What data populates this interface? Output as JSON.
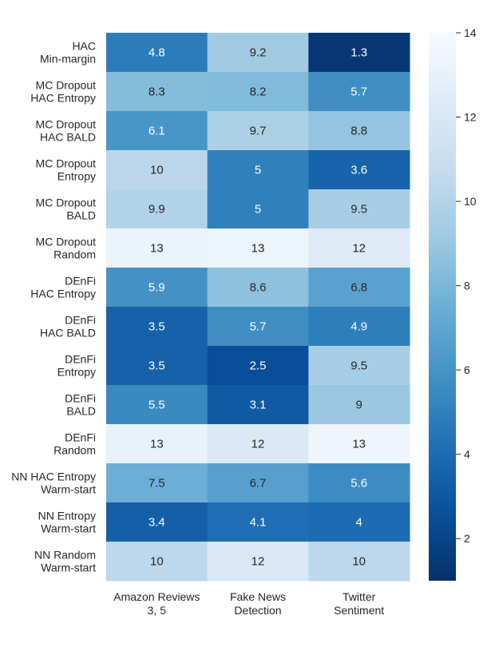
{
  "chart_data": {
    "type": "heatmap",
    "title": "",
    "xlabel": "",
    "ylabel": "",
    "colormap": "Blues_r",
    "color_range": [
      1,
      14
    ],
    "colorbar_ticks": [
      "2",
      "4",
      "6",
      "8",
      "10",
      "12",
      "14"
    ],
    "columns": [
      [
        "Amazon Reviews",
        "3, 5"
      ],
      [
        "Fake News",
        "Detection"
      ],
      [
        "Twitter",
        "Sentiment"
      ]
    ],
    "rows": [
      [
        "HAC",
        "Min-margin"
      ],
      [
        "MC Dropout",
        "HAC Entropy"
      ],
      [
        "MC Dropout",
        "HAC BALD"
      ],
      [
        "MC Dropout",
        "Entropy"
      ],
      [
        "MC Dropout",
        "BALD"
      ],
      [
        "MC Dropout",
        "Random"
      ],
      [
        "DEnFi",
        "HAC Entropy"
      ],
      [
        "DEnFi",
        "HAC BALD"
      ],
      [
        "DEnFi",
        "Entropy"
      ],
      [
        "DEnFi",
        "BALD"
      ],
      [
        "DEnFi",
        "Random"
      ],
      [
        "NN HAC Entropy",
        "Warm-start"
      ],
      [
        "NN Entropy",
        "Warm-start"
      ],
      [
        "NN Random",
        "Warm-start"
      ]
    ],
    "values": [
      [
        4.8,
        9.2,
        1.3
      ],
      [
        8.3,
        8.2,
        5.7
      ],
      [
        6.1,
        9.7,
        8.8
      ],
      [
        10.3,
        5.0,
        3.6
      ],
      [
        9.9,
        5.0,
        9.5
      ],
      [
        13.2,
        13.3,
        12.4
      ],
      [
        5.9,
        8.6,
        6.8
      ],
      [
        3.5,
        5.7,
        4.9
      ],
      [
        3.5,
        2.5,
        9.5
      ],
      [
        5.5,
        3.1,
        9.0
      ],
      [
        13.1,
        12.2,
        13.4
      ],
      [
        7.5,
        6.7,
        5.6
      ],
      [
        3.4,
        4.1,
        4.0
      ],
      [
        10.4,
        12.1,
        10.4
      ]
    ],
    "labels": [
      [
        "4.8",
        "9.2",
        "1.3"
      ],
      [
        "8.3",
        "8.2",
        "5.7"
      ],
      [
        "6.1",
        "9.7",
        "8.8"
      ],
      [
        "10",
        "5",
        "3.6"
      ],
      [
        "9.9",
        "5",
        "9.5"
      ],
      [
        "13",
        "13",
        "12"
      ],
      [
        "5.9",
        "8.6",
        "6.8"
      ],
      [
        "3.5",
        "5.7",
        "4.9"
      ],
      [
        "3.5",
        "2.5",
        "9.5"
      ],
      [
        "5.5",
        "3.1",
        "9"
      ],
      [
        "13",
        "12",
        "13"
      ],
      [
        "7.5",
        "6.7",
        "5.6"
      ],
      [
        "3.4",
        "4.1",
        "4"
      ],
      [
        "10",
        "12",
        "10"
      ]
    ]
  }
}
